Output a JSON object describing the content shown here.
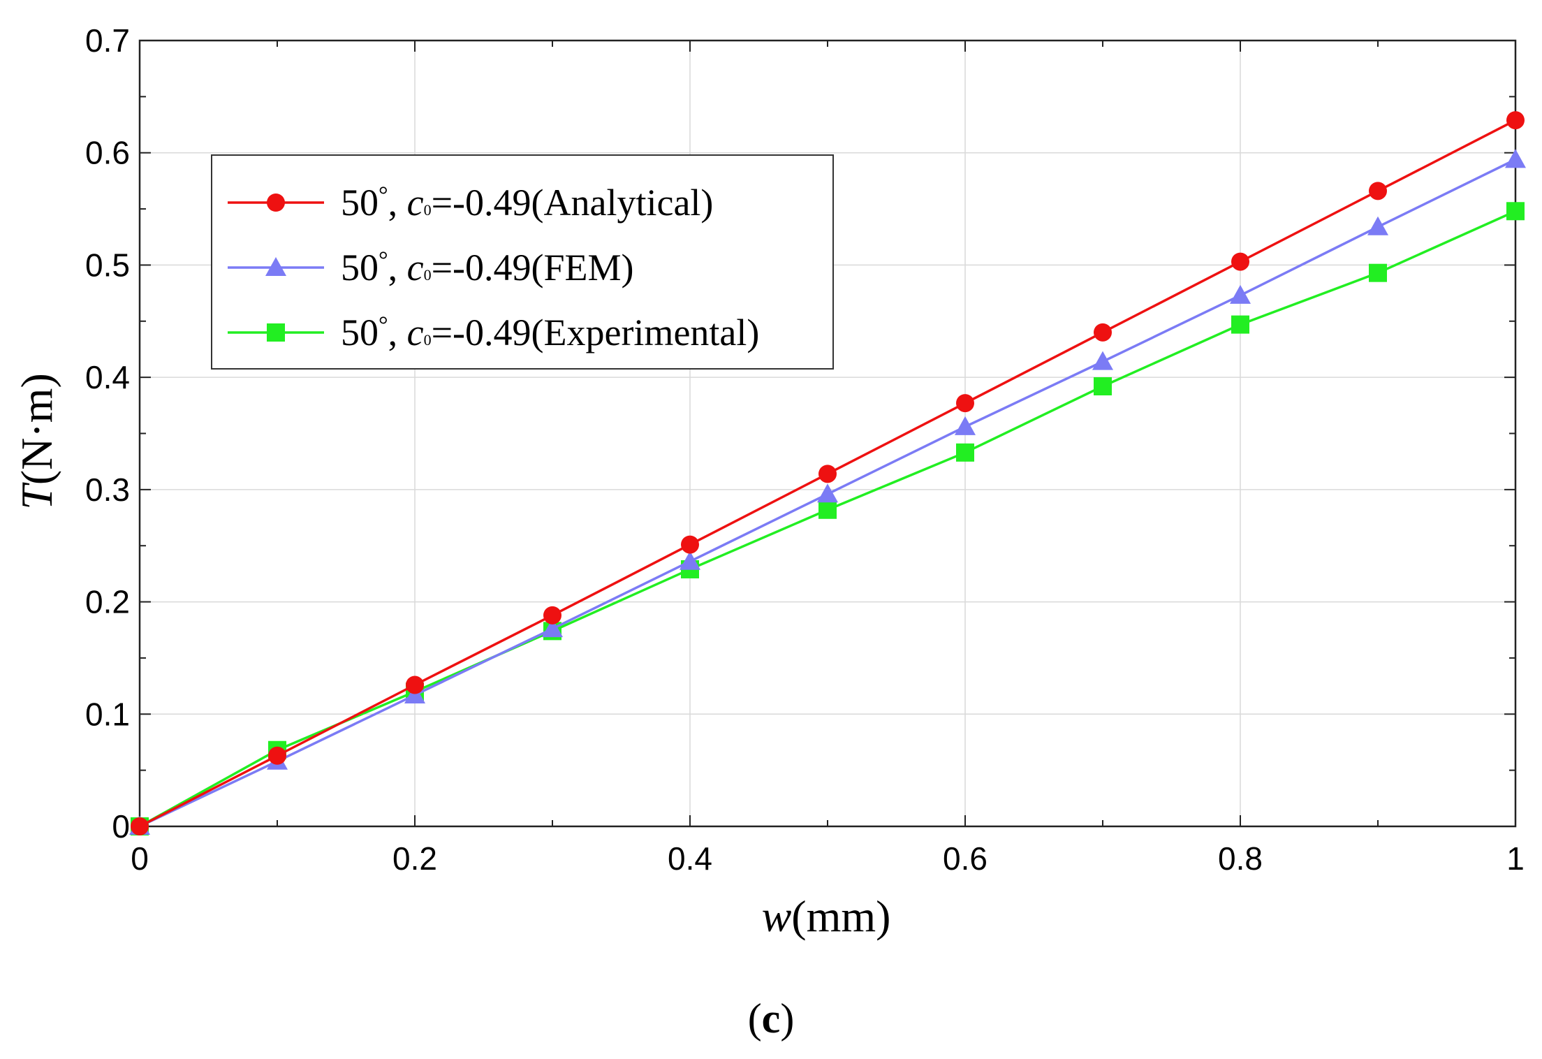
{
  "chart_data": {
    "type": "line",
    "title": "",
    "xlabel": {
      "italic": "w",
      "unit": "(mm)"
    },
    "ylabel": {
      "italic": "T",
      "unit": "(N·m)"
    },
    "xlim": [
      0,
      1
    ],
    "ylim": [
      0,
      0.7
    ],
    "xticks": [
      0,
      0.2,
      0.4,
      0.6,
      0.8,
      1
    ],
    "xtick_labels": [
      "0",
      "0.2",
      "0.4",
      "0.6",
      "0.8",
      "1"
    ],
    "yticks": [
      0,
      0.1,
      0.2,
      0.3,
      0.4,
      0.5,
      0.6,
      0.7
    ],
    "ytick_labels": [
      "0",
      "0.1",
      "0.2",
      "0.3",
      "0.4",
      "0.5",
      "0.6",
      "0.7"
    ],
    "grid": true,
    "legend_position": "upper-left",
    "x": [
      0,
      0.1,
      0.2,
      0.3,
      0.4,
      0.5,
      0.6,
      0.7,
      0.8,
      0.9,
      1.0
    ],
    "series": [
      {
        "name": "50°, c₀=-0.49(Analytical)",
        "angle": "50",
        "symbol": "c",
        "subscript": "0",
        "rest": "=-0.49(Analytical)",
        "color": "#ee1111",
        "marker": "circle",
        "values": [
          0,
          0.063,
          0.126,
          0.188,
          0.251,
          0.314,
          0.377,
          0.44,
          0.503,
          0.566,
          0.629
        ]
      },
      {
        "name": "50°, c₀=-0.49(FEM)",
        "angle": "50",
        "symbol": "c",
        "subscript": "0",
        "rest": "=-0.49(FEM)",
        "color": "#7b7bf5",
        "marker": "triangle",
        "values": [
          0,
          0.058,
          0.117,
          0.176,
          0.236,
          0.296,
          0.356,
          0.414,
          0.473,
          0.534,
          0.594
        ]
      },
      {
        "name": "50°, c₀=-0.49(Experimental)",
        "angle": "50",
        "symbol": "c",
        "subscript": "0",
        "rest": "=-0.49(Experimental)",
        "color": "#22ee22",
        "marker": "square",
        "values": [
          0,
          0.068,
          0.12,
          0.174,
          0.229,
          0.282,
          0.333,
          0.392,
          0.447,
          0.493,
          0.548
        ]
      }
    ]
  },
  "caption": {
    "open": "(",
    "letter": "c",
    "close": ")"
  }
}
